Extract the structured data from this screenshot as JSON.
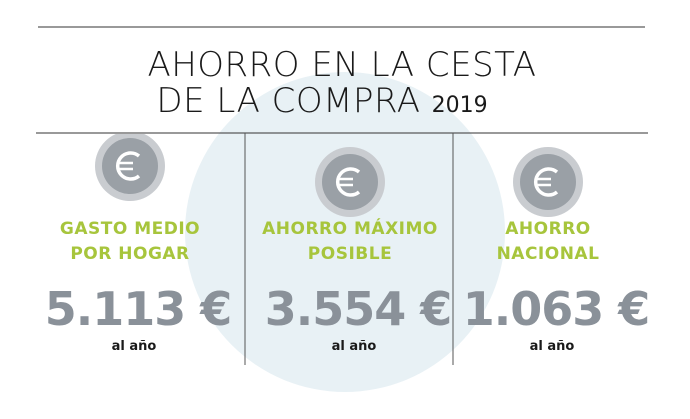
{
  "header": {
    "title_line1": "AHORRO EN LA CESTA",
    "title_line2": "DE LA COMPRA",
    "year": "2019"
  },
  "columns": [
    {
      "label_line1": "GASTO MEDIO",
      "label_line2": "POR HOGAR",
      "value": "5.113 €",
      "note": "al año"
    },
    {
      "label_line1": "AHORRO MÁXIMO",
      "label_line2": "POSIBLE",
      "value": "3.554 €",
      "note": "al año"
    },
    {
      "label_line1": "AHORRO",
      "label_line2": "NACIONAL",
      "value": "1.063 €",
      "note": "al año"
    }
  ]
}
